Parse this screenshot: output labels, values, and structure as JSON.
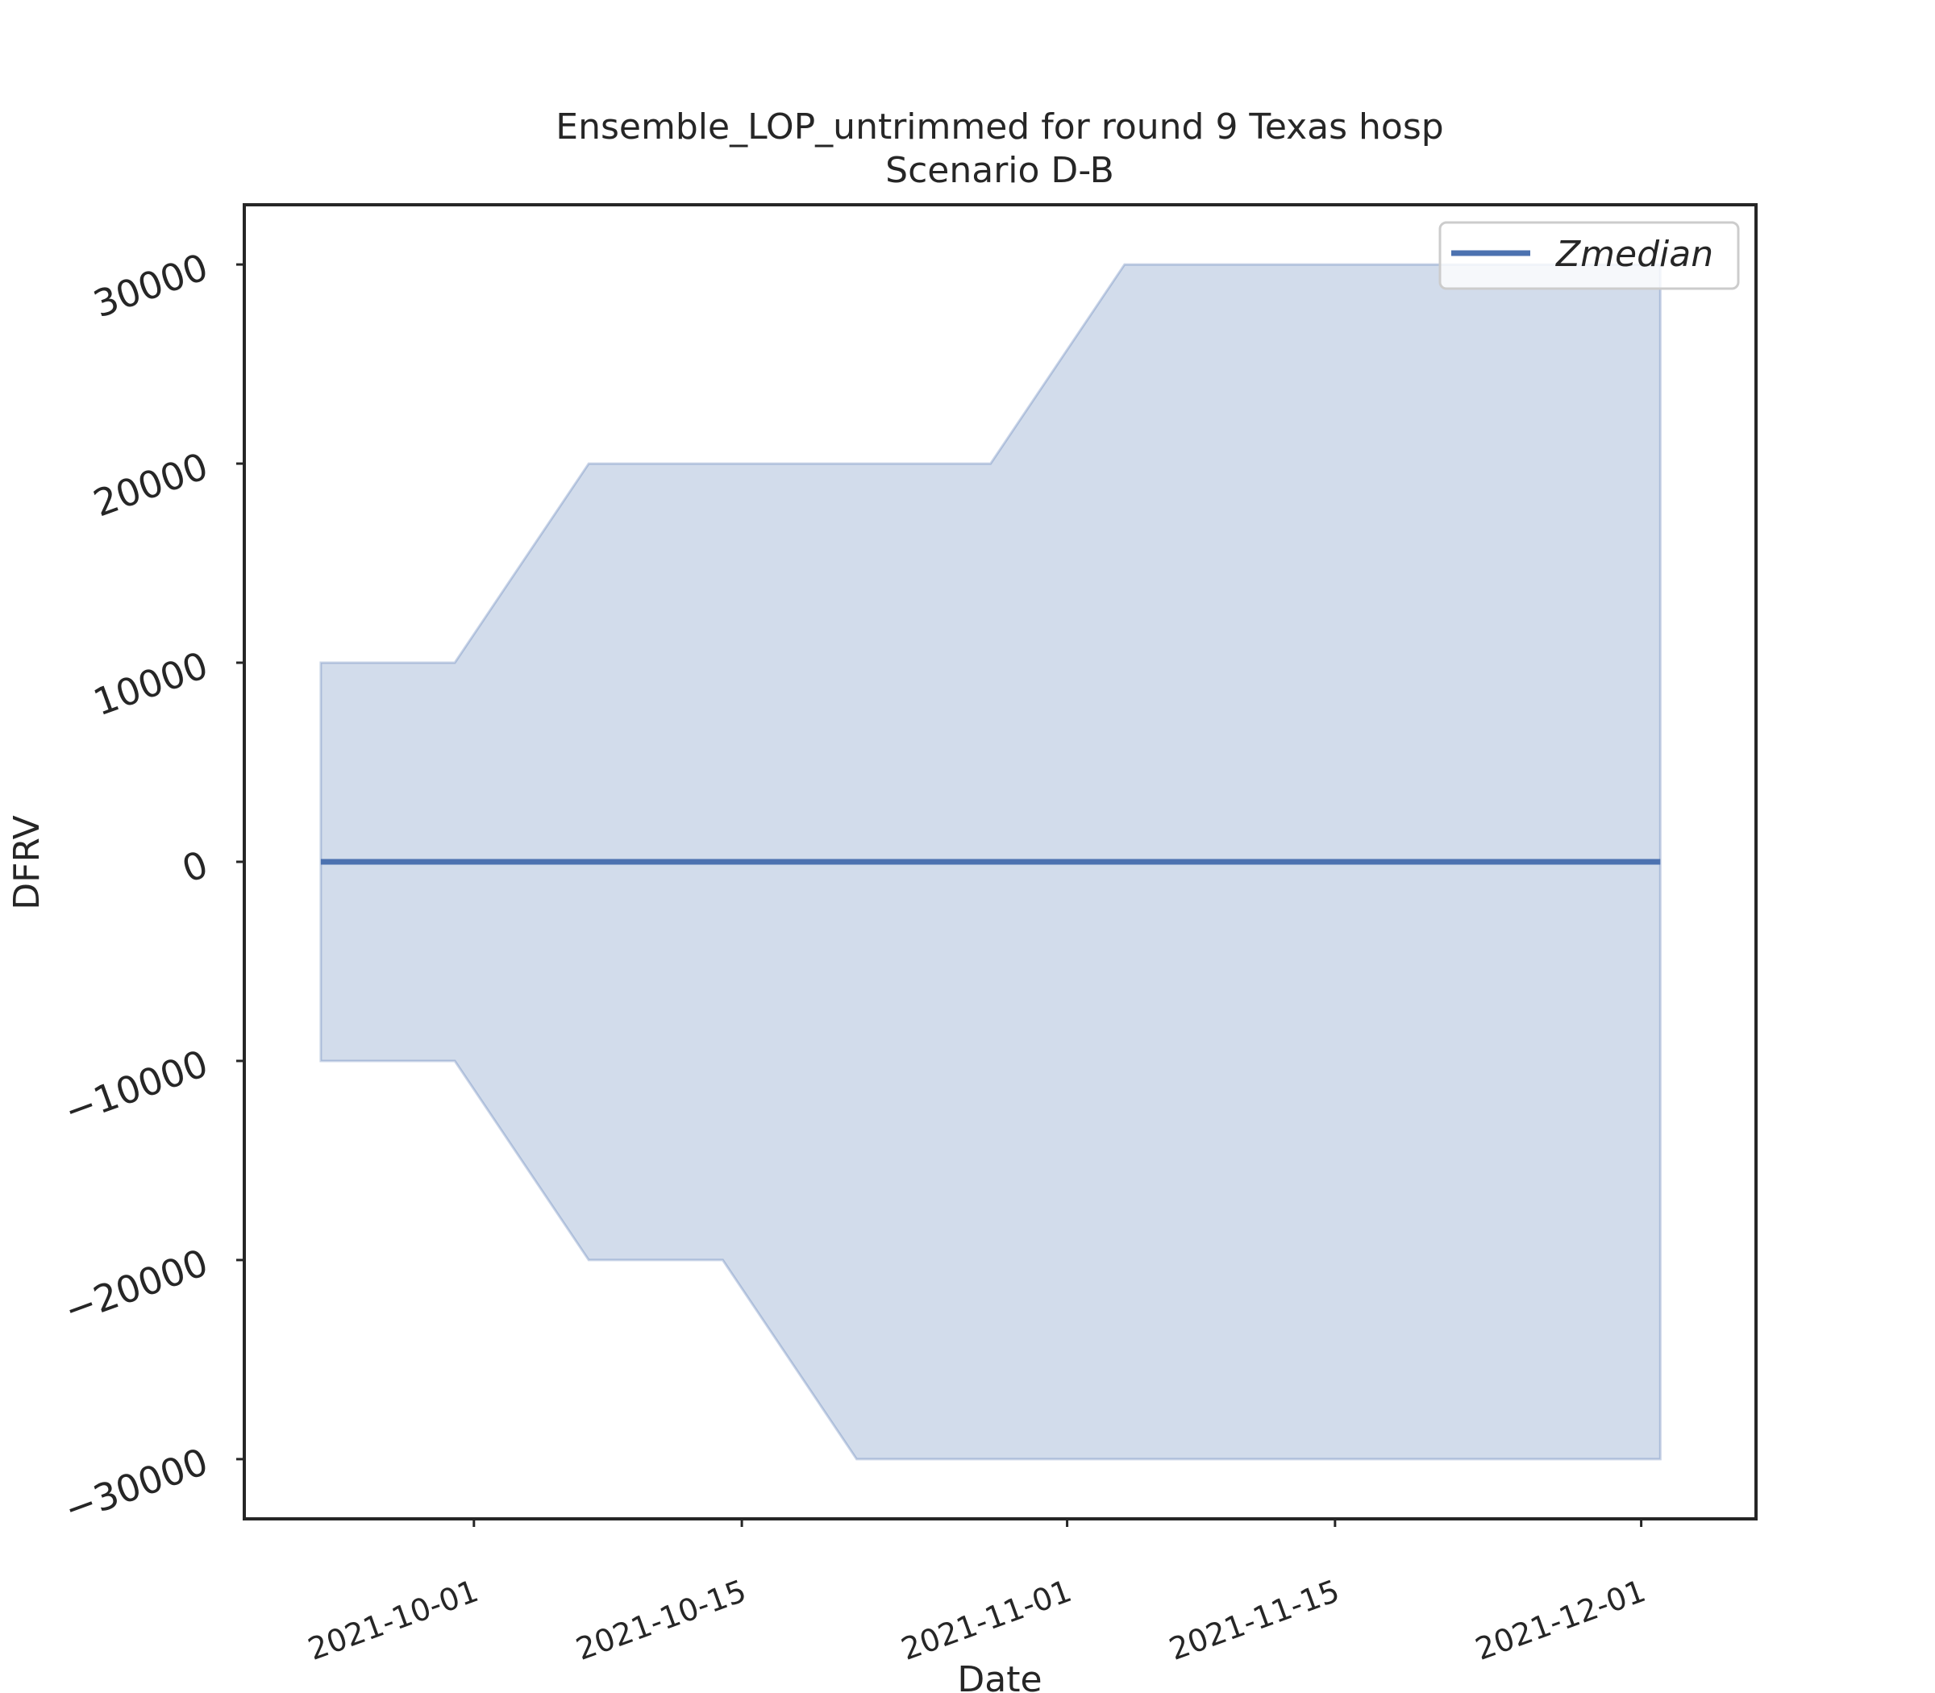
{
  "chart_data": {
    "type": "area",
    "title": "Ensemble_LOP_untrimmed for round 9 Texas hosp",
    "subtitle": "Scenario D-B",
    "xlabel": "Date",
    "ylabel": "DFRV",
    "x_ticks": [
      "2021-10-01",
      "2021-10-15",
      "2021-11-01",
      "2021-11-15",
      "2021-12-01"
    ],
    "y_ticks": [
      -30000,
      -20000,
      -10000,
      0,
      10000,
      20000,
      30000
    ],
    "ylim": [
      -33000,
      33000
    ],
    "xlim": [
      "2021-09-19",
      "2021-12-07"
    ],
    "legend": {
      "position": "top-right",
      "entries": [
        "Zmedian"
      ]
    },
    "grid": false,
    "colors": {
      "line": "#4c72b0",
      "band": "#4c72b0",
      "axes": "#262626"
    },
    "band": {
      "name": "",
      "upper": [
        {
          "x": "2021-09-23",
          "y": 10000
        },
        {
          "x": "2021-09-30",
          "y": 10000
        },
        {
          "x": "2021-10-07",
          "y": 20000
        },
        {
          "x": "2021-10-28",
          "y": 20000
        },
        {
          "x": "2021-11-04",
          "y": 30000
        },
        {
          "x": "2021-12-02",
          "y": 30000
        }
      ],
      "lower": [
        {
          "x": "2021-09-23",
          "y": -10000
        },
        {
          "x": "2021-09-30",
          "y": -10000
        },
        {
          "x": "2021-10-07",
          "y": -20000
        },
        {
          "x": "2021-10-14",
          "y": -20000
        },
        {
          "x": "2021-10-21",
          "y": -30000
        },
        {
          "x": "2021-12-02",
          "y": -30000
        }
      ]
    },
    "series": [
      {
        "name": "Zmedian",
        "points": [
          {
            "x": "2021-09-23",
            "y": 0
          },
          {
            "x": "2021-12-02",
            "y": 0
          }
        ]
      }
    ]
  }
}
